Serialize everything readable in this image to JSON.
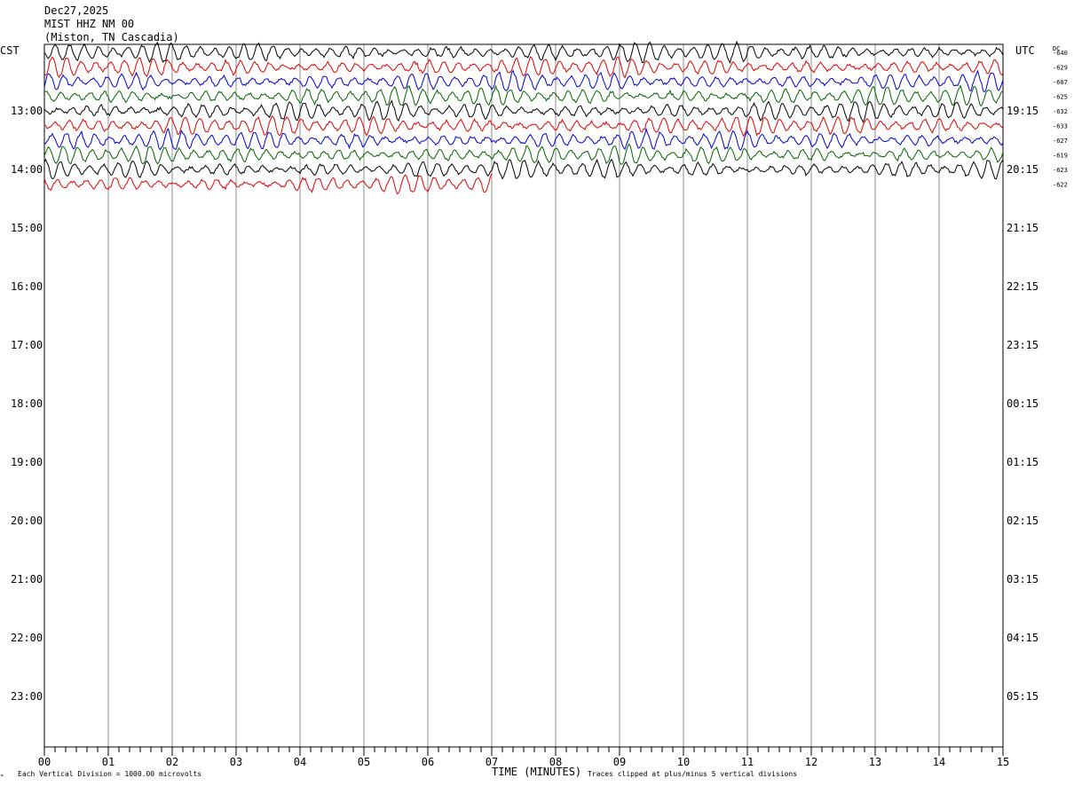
{
  "header": {
    "date": "Dec27,2025",
    "station": "MIST HHZ NM 00",
    "location": "(Miston, TN Cascadia)"
  },
  "left_timezone": "CST",
  "right_timezone": "UTC",
  "dc_label": "DC",
  "footer": {
    "logo_text": "ᴹ",
    "scale_note": "Each Vertical Division = 1000.00 microvolts",
    "x_title": "TIME (MINUTES)",
    "clip_note": "Traces clipped at plus/minus 5 vertical divisions"
  },
  "chart_data": {
    "type": "line",
    "title": "MIST HHZ NM 00",
    "xlabel": "TIME (MINUTES)",
    "ylabel": "",
    "xlim": [
      0,
      15
    ],
    "x_ticks": [
      "00",
      "01",
      "02",
      "03",
      "04",
      "05",
      "06",
      "07",
      "08",
      "09",
      "10",
      "11",
      "12",
      "13",
      "14",
      "15"
    ],
    "left_hour_labels": [
      "13:00",
      "14:00",
      "15:00",
      "16:00",
      "17:00",
      "18:00",
      "19:00",
      "20:00",
      "21:00",
      "22:00",
      "23:00"
    ],
    "right_hour_labels": [
      "19:15",
      "20:15",
      "21:15",
      "22:15",
      "23:15",
      "00:15",
      "01:15",
      "02:15",
      "03:15",
      "04:15",
      "05:15"
    ],
    "grid": true,
    "trace_colors": [
      "#000000",
      "#e00000",
      "#0000d0",
      "#006400"
    ],
    "traces": [
      {
        "dc_offset": "-640",
        "color": "#000000",
        "end_minute": 15
      },
      {
        "dc_offset": "-629",
        "color": "#e00000",
        "end_minute": 15
      },
      {
        "dc_offset": "-607",
        "color": "#0000d0",
        "end_minute": 15
      },
      {
        "dc_offset": "-625",
        "color": "#006400",
        "end_minute": 15
      },
      {
        "dc_offset": "-632",
        "color": "#000000",
        "end_minute": 15
      },
      {
        "dc_offset": "-633",
        "color": "#e00000",
        "end_minute": 15
      },
      {
        "dc_offset": "-627",
        "color": "#0000d0",
        "end_minute": 15
      },
      {
        "dc_offset": "-619",
        "color": "#006400",
        "end_minute": 15
      },
      {
        "dc_offset": "-623",
        "color": "#000000",
        "end_minute": 15
      },
      {
        "dc_offset": "-622",
        "color": "#e00000",
        "end_minute": 7
      }
    ]
  }
}
